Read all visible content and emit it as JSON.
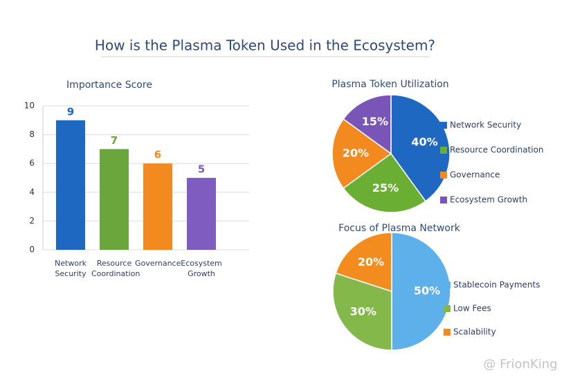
{
  "title": "How is the Plasma Token Used in the Ecosystem?",
  "watermark": "@ FrionKing",
  "chart_data": [
    {
      "type": "bar",
      "title": "Importance Score",
      "categories": [
        "Network Security",
        "Resource Coordination",
        "Governance",
        "Ecosystem Growth"
      ],
      "values": [
        9,
        7,
        6,
        5
      ],
      "colors": [
        "#1f68c1",
        "#6aa63c",
        "#f38a1f",
        "#7f5cbf"
      ],
      "ylim": [
        0,
        10
      ],
      "yticks": [
        0,
        2,
        4,
        6,
        8,
        10
      ],
      "grid": true
    },
    {
      "type": "pie",
      "title": "Plasma Token Utilization",
      "categories": [
        "Network Security",
        "Resource Coordination",
        "Governance",
        "Ecosystem Growth"
      ],
      "values": [
        40,
        25,
        20,
        15
      ],
      "value_labels": [
        "40%",
        "25%",
        "20%",
        "15%"
      ],
      "colors": [
        "#1f68c1",
        "#6aaf34",
        "#f38a1f",
        "#7a55b8"
      ]
    },
    {
      "type": "pie",
      "title": "Focus of Plasma Network",
      "categories": [
        "Stablecoin Payments",
        "Low Fees",
        "Scalability"
      ],
      "values": [
        50,
        30,
        20
      ],
      "value_labels": [
        "50%",
        "30%",
        "20%"
      ],
      "colors": [
        "#5eb0ea",
        "#84b84a",
        "#f28c1e"
      ]
    }
  ]
}
